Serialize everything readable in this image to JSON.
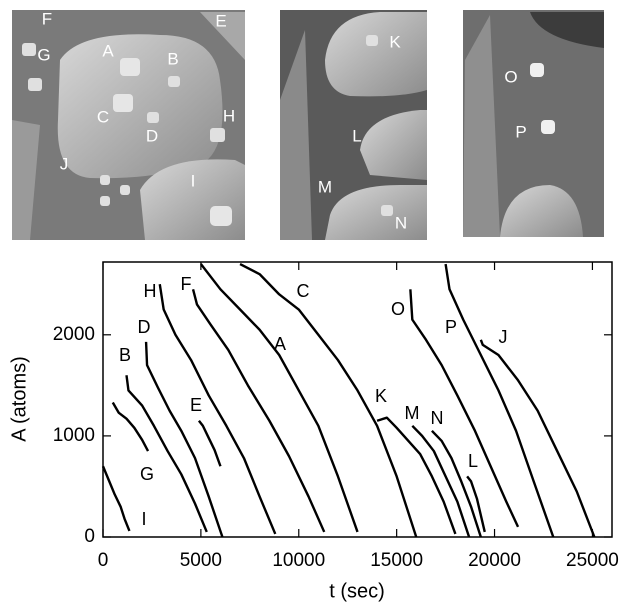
{
  "images": [
    {
      "labels": [
        "F",
        "G",
        "A",
        "B",
        "E",
        "C",
        "D",
        "H",
        "J",
        "I"
      ]
    },
    {
      "labels": [
        "K",
        "L",
        "M",
        "N"
      ]
    },
    {
      "labels": [
        "O",
        "P"
      ]
    }
  ],
  "chart_data": {
    "type": "line",
    "xlabel": "t (sec)",
    "ylabel": "A (atoms)",
    "xlim": [
      0,
      26000
    ],
    "ylim": [
      0,
      2720
    ],
    "xticks": [
      0,
      5000,
      10000,
      15000,
      20000,
      25000
    ],
    "yticks": [
      0,
      1000,
      2000
    ],
    "color": "#000000",
    "series": [
      {
        "name": "I",
        "x": [
          0,
          300,
          600,
          900,
          1100,
          1350
        ],
        "values": [
          700,
          560,
          420,
          300,
          180,
          60
        ]
      },
      {
        "name": "G",
        "x": [
          500,
          800,
          1200,
          1600,
          2000,
          2300
        ],
        "values": [
          1330,
          1230,
          1170,
          1080,
          960,
          850
        ]
      },
      {
        "name": "B",
        "x": [
          1200,
          1300,
          2000,
          2600,
          3300,
          4000,
          4700,
          5300
        ],
        "values": [
          1600,
          1450,
          1300,
          1100,
          850,
          620,
          330,
          50
        ]
      },
      {
        "name": "D",
        "x": [
          2200,
          2250,
          2800,
          3400,
          4000,
          4700,
          5400,
          6100
        ],
        "values": [
          1930,
          1700,
          1480,
          1250,
          1050,
          780,
          400,
          0
        ]
      },
      {
        "name": "E",
        "x": [
          4900,
          5100,
          5400,
          5700,
          6000
        ],
        "values": [
          1150,
          1100,
          980,
          860,
          700
        ]
      },
      {
        "name": "H",
        "x": [
          2900,
          3100,
          3700,
          4500,
          5400,
          6300,
          7200,
          8000,
          8800
        ],
        "values": [
          2500,
          2250,
          2000,
          1750,
          1400,
          1100,
          780,
          400,
          30
        ]
      },
      {
        "name": "F",
        "x": [
          4600,
          4800,
          5500,
          6400,
          7400,
          8500,
          9500,
          10500,
          11300
        ],
        "values": [
          2450,
          2300,
          2100,
          1850,
          1500,
          1150,
          800,
          400,
          50
        ]
      },
      {
        "name": "A",
        "x": [
          5000,
          6000,
          7000,
          8000,
          9000,
          10000,
          11000,
          12000,
          13000
        ],
        "values": [
          2700,
          2450,
          2250,
          2050,
          1800,
          1450,
          1100,
          600,
          50
        ]
      },
      {
        "name": "C",
        "x": [
          7000,
          8000,
          9000,
          10000,
          11000,
          12000,
          13000,
          14000,
          15000,
          16000
        ],
        "values": [
          2700,
          2600,
          2400,
          2250,
          2000,
          1750,
          1450,
          1100,
          600,
          0
        ]
      },
      {
        "name": "K",
        "x": [
          14000,
          14500,
          15000,
          15600,
          16200,
          16800,
          17400,
          18000
        ],
        "values": [
          1150,
          1180,
          1080,
          950,
          820,
          600,
          350,
          30
        ]
      },
      {
        "name": "M",
        "x": [
          15800,
          16300,
          16900,
          17500,
          18100,
          18700
        ],
        "values": [
          1100,
          1000,
          850,
          600,
          350,
          0
        ]
      },
      {
        "name": "N",
        "x": [
          16800,
          17300,
          17800,
          18300,
          18800,
          19300
        ],
        "values": [
          1050,
          950,
          780,
          550,
          300,
          0
        ]
      },
      {
        "name": "L",
        "x": [
          18600,
          18800,
          19100,
          19500
        ],
        "values": [
          600,
          550,
          380,
          50
        ]
      },
      {
        "name": "O",
        "x": [
          15700,
          15800,
          16500,
          17300,
          18100,
          19000,
          19800,
          20600,
          21200
        ],
        "values": [
          2450,
          2150,
          1950,
          1700,
          1400,
          1050,
          700,
          350,
          100
        ]
      },
      {
        "name": "P",
        "x": [
          17500,
          17700,
          18400,
          19300,
          20200,
          21100,
          22000,
          23000
        ],
        "values": [
          2700,
          2450,
          2150,
          1800,
          1450,
          1050,
          550,
          0
        ]
      },
      {
        "name": "J",
        "x": [
          19300,
          19400,
          20200,
          21200,
          22200,
          23200,
          24200,
          25100
        ],
        "values": [
          1950,
          1900,
          1800,
          1550,
          1250,
          850,
          450,
          0
        ]
      }
    ]
  }
}
